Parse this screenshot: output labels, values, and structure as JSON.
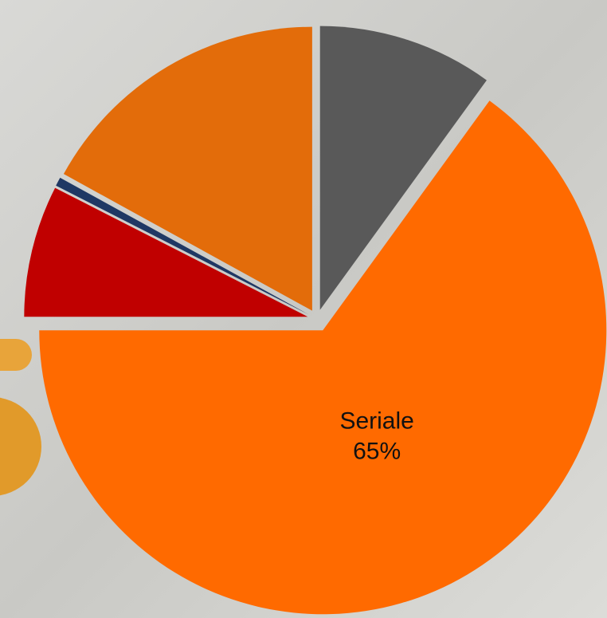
{
  "chart_data": {
    "type": "pie",
    "categories": [
      null,
      "Seriale",
      null,
      null,
      null
    ],
    "values": [
      10,
      65,
      7.5,
      0.5,
      17
    ],
    "value_labels": [
      null,
      "65%",
      null,
      null,
      null
    ],
    "colors": [
      "#595959",
      "#ff6a00",
      "#c00000",
      "#1f3864",
      "#e36c0a"
    ],
    "start_angle": 0,
    "direction": "clockwise",
    "exploded": true
  }
}
